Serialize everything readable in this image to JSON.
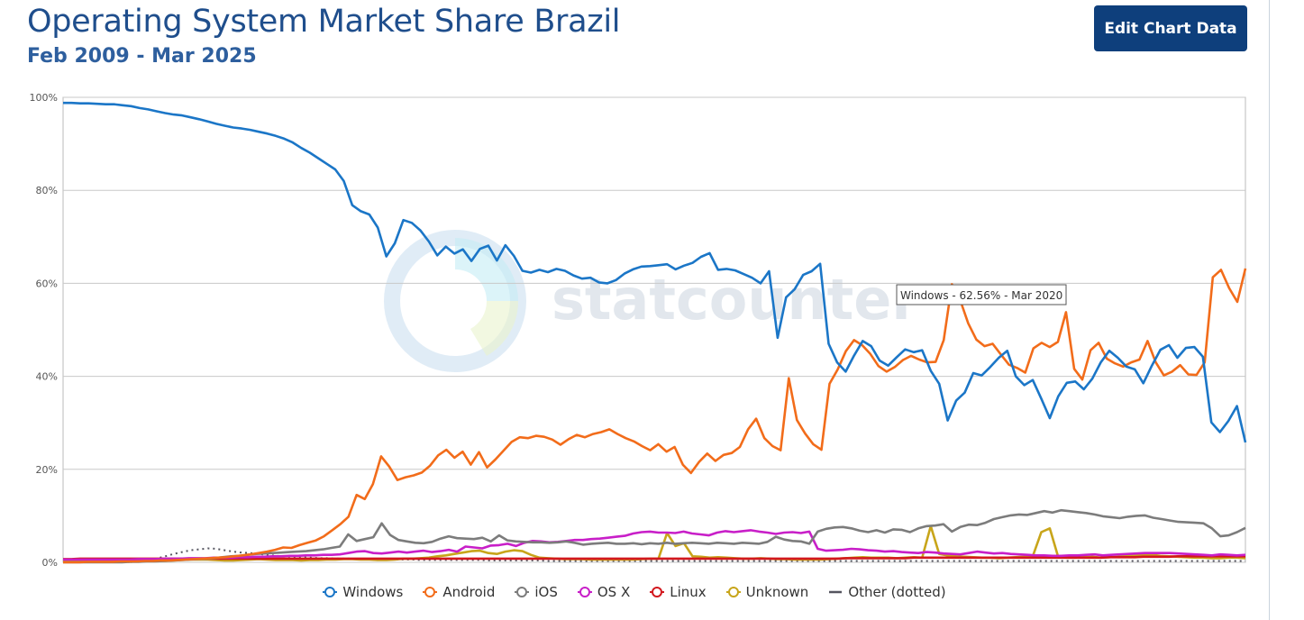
{
  "header": {
    "title": "Operating System Market Share Brazil",
    "subtitle": "Feb 2009 - Mar 2025",
    "edit_button_label": "Edit Chart Data"
  },
  "tooltip": {
    "text": "Windows - 62.56% - Mar 2020"
  },
  "watermark": {
    "text": "statcounter"
  },
  "chart_data": {
    "type": "line",
    "x_start": "Feb 2009",
    "x_end": "Mar 2025",
    "ylim": [
      0,
      100
    ],
    "y_ticks": [
      "0%",
      "20%",
      "40%",
      "60%",
      "80%",
      "100%"
    ],
    "grid": true,
    "legend_position": "bottom",
    "series": [
      {
        "name": "Windows",
        "color": "#1b76c7",
        "values": [
          98.8,
          98.8,
          98.7,
          98.7,
          98.6,
          98.5,
          98.5,
          98.3,
          98.1,
          97.7,
          97.4,
          97.0,
          96.6,
          96.3,
          96.1,
          95.7,
          95.3,
          94.8,
          94.3,
          93.9,
          93.5,
          93.3,
          93.0,
          92.6,
          92.2,
          91.7,
          91.1,
          90.3,
          89.1,
          88.1,
          86.9,
          85.7,
          84.5,
          82.0,
          76.8,
          75.5,
          74.8,
          72.0,
          65.8,
          68.6,
          73.6,
          73.0,
          71.4,
          69.0,
          66.0,
          67.9,
          66.4,
          67.3,
          64.8,
          67.4,
          68.1,
          64.9,
          68.2,
          65.9,
          62.7,
          62.3,
          62.9,
          62.4,
          63.1,
          62.7,
          61.7,
          61.0,
          61.2,
          60.2,
          60.0,
          60.7,
          62.1,
          63.0,
          63.6,
          63.7,
          63.9,
          64.1,
          63.0,
          63.8,
          64.4,
          65.7,
          66.5,
          62.9,
          63.1,
          62.8,
          62.0,
          61.2,
          60.0,
          62.6,
          48.3,
          57.0,
          58.7,
          61.8,
          62.6,
          64.2,
          47.0,
          43.0,
          41.0,
          44.5,
          47.6,
          46.5,
          43.4,
          42.3,
          44.1,
          45.8,
          45.2,
          45.6,
          41.2,
          38.4,
          30.5,
          34.8,
          36.5,
          40.7,
          40.2,
          42.0,
          44.0,
          45.5,
          40.0,
          38.1,
          39.2,
          35.2,
          31.0,
          35.7,
          38.6,
          38.9,
          37.2,
          39.5,
          43.0,
          45.5,
          44.0,
          42.1,
          41.5,
          38.5,
          42.3,
          45.7,
          46.7,
          44.0,
          46.1,
          46.3,
          44.2,
          30.1,
          28.0,
          30.4,
          33.6,
          25.8
        ]
      },
      {
        "name": "Android",
        "color": "#f26c1a",
        "values": [
          0.0,
          0.0,
          0.0,
          0.1,
          0.1,
          0.1,
          0.1,
          0.2,
          0.2,
          0.2,
          0.3,
          0.3,
          0.4,
          0.4,
          0.5,
          0.6,
          0.7,
          0.8,
          0.9,
          1.0,
          1.1,
          1.3,
          1.5,
          1.7,
          2.0,
          2.3,
          2.7,
          3.2,
          3.1,
          3.7,
          4.2,
          4.7,
          5.6,
          6.9,
          8.2,
          9.8,
          14.5,
          13.6,
          16.8,
          22.8,
          20.6,
          17.7,
          18.3,
          18.7,
          19.3,
          20.8,
          23.0,
          24.2,
          22.5,
          23.8,
          21.0,
          23.7,
          20.4,
          22.1,
          24.0,
          25.9,
          26.9,
          26.7,
          27.2,
          27.0,
          26.4,
          25.3,
          26.5,
          27.4,
          26.9,
          27.6,
          28.0,
          28.6,
          27.6,
          26.7,
          26.0,
          25.0,
          24.1,
          25.4,
          23.8,
          24.8,
          21.0,
          19.2,
          21.6,
          23.4,
          21.8,
          23.1,
          23.5,
          24.8,
          28.6,
          30.9,
          26.7,
          25.0,
          24.1,
          39.6,
          30.6,
          27.7,
          25.4,
          24.2,
          38.4,
          41.5,
          45.4,
          47.8,
          46.7,
          44.8,
          42.2,
          41.0,
          42.0,
          43.5,
          44.4,
          43.6,
          43.0,
          43.1,
          47.8,
          59.8,
          56.5,
          51.4,
          47.9,
          46.5,
          47.0,
          44.7,
          42.5,
          41.8,
          40.8,
          46.0,
          47.2,
          46.3,
          47.4,
          53.8,
          41.6,
          39.3,
          45.6,
          47.2,
          43.8,
          42.8,
          42.1,
          43.0,
          43.6,
          47.6,
          43.0,
          40.2,
          41.0,
          42.4,
          40.4,
          40.3,
          43.0,
          61.3,
          62.9,
          59.0,
          56.0,
          63.2
        ]
      },
      {
        "name": "iOS",
        "color": "#7c7c7c",
        "values": [
          0.0,
          0.0,
          0.0,
          0.0,
          0.0,
          0.0,
          0.0,
          0.0,
          0.1,
          0.1,
          0.2,
          0.2,
          0.3,
          0.4,
          0.5,
          0.6,
          0.7,
          0.8,
          0.9,
          1.1,
          1.3,
          1.4,
          1.6,
          1.8,
          1.9,
          2.0,
          2.1,
          2.2,
          2.3,
          2.4,
          2.6,
          2.8,
          3.1,
          3.4,
          6.0,
          4.6,
          5.0,
          5.4,
          8.4,
          5.9,
          4.8,
          4.5,
          4.2,
          4.1,
          4.4,
          5.1,
          5.6,
          5.2,
          5.1,
          5.0,
          5.3,
          4.5,
          5.8,
          4.7,
          4.5,
          4.4,
          4.3,
          4.3,
          4.2,
          4.3,
          4.5,
          4.2,
          3.8,
          4.0,
          4.1,
          4.2,
          4.0,
          4.0,
          4.1,
          3.9,
          4.1,
          4.0,
          4.2,
          4.0,
          4.1,
          4.2,
          4.1,
          4.0,
          4.2,
          4.1,
          4.0,
          4.2,
          4.1,
          4.0,
          4.4,
          5.5,
          4.9,
          4.6,
          4.5,
          4.0,
          6.6,
          7.2,
          7.5,
          7.6,
          7.3,
          6.8,
          6.5,
          6.9,
          6.4,
          7.1,
          7.0,
          6.5,
          7.3,
          7.8,
          7.9,
          8.2,
          6.6,
          7.6,
          8.1,
          8.0,
          8.5,
          9.3,
          9.7,
          10.1,
          10.3,
          10.2,
          10.6,
          11.0,
          10.7,
          11.2,
          11.0,
          10.8,
          10.6,
          10.3,
          9.9,
          9.7,
          9.5,
          9.8,
          10.0,
          10.1,
          9.6,
          9.3,
          9.0,
          8.7,
          8.6,
          8.5,
          8.4,
          7.3,
          5.6,
          5.8,
          6.5,
          7.4
        ]
      },
      {
        "name": "OS X",
        "color": "#c81fc8",
        "values": [
          0.6,
          0.6,
          0.6,
          0.6,
          0.6,
          0.6,
          0.6,
          0.6,
          0.6,
          0.7,
          0.7,
          0.7,
          0.8,
          0.8,
          0.8,
          0.9,
          0.9,
          0.9,
          1.0,
          1.0,
          1.0,
          1.1,
          1.1,
          1.2,
          1.2,
          1.3,
          1.3,
          1.4,
          1.4,
          1.5,
          1.5,
          1.6,
          1.6,
          1.7,
          2.0,
          2.3,
          2.4,
          2.0,
          1.9,
          2.1,
          2.3,
          2.1,
          2.3,
          2.5,
          2.2,
          2.4,
          2.7,
          2.3,
          3.4,
          3.2,
          3.0,
          3.6,
          3.7,
          4.0,
          3.5,
          4.2,
          4.6,
          4.5,
          4.3,
          4.4,
          4.6,
          4.8,
          4.8,
          5.0,
          5.1,
          5.3,
          5.5,
          5.7,
          6.2,
          6.5,
          6.6,
          6.4,
          6.4,
          6.3,
          6.6,
          6.2,
          6.0,
          5.8,
          6.4,
          6.7,
          6.5,
          6.7,
          6.9,
          6.6,
          6.4,
          6.1,
          6.4,
          6.5,
          6.3,
          6.6,
          2.9,
          2.5,
          2.6,
          2.7,
          2.9,
          2.8,
          2.6,
          2.5,
          2.3,
          2.4,
          2.2,
          2.1,
          2.0,
          2.2,
          2.1,
          1.9,
          1.8,
          1.7,
          2.0,
          2.3,
          2.1,
          1.9,
          2.0,
          1.8,
          1.7,
          1.6,
          1.5,
          1.5,
          1.4,
          1.4,
          1.5,
          1.5,
          1.6,
          1.7,
          1.5,
          1.6,
          1.7,
          1.8,
          1.9,
          2.0,
          2.0,
          2.0,
          2.0,
          1.9,
          1.8,
          1.7,
          1.6,
          1.5,
          1.7,
          1.6,
          1.5,
          1.6
        ]
      },
      {
        "name": "Linux",
        "color": "#d2181e",
        "values": [
          0.7,
          0.7,
          0.8,
          0.8,
          0.8,
          0.8,
          0.8,
          0.8,
          0.8,
          0.8,
          0.8,
          0.8,
          0.8,
          0.8,
          0.8,
          0.8,
          0.8,
          0.8,
          0.8,
          0.8,
          0.8,
          0.8,
          0.8,
          0.8,
          0.8,
          0.8,
          0.8,
          0.8,
          0.8,
          0.8,
          0.8,
          0.8,
          0.8,
          0.8,
          0.8,
          0.8,
          0.8,
          0.8,
          0.8,
          0.8,
          0.8,
          0.8,
          0.8,
          0.8,
          0.8,
          0.8,
          0.8,
          0.8,
          0.8,
          0.8,
          0.8,
          0.8,
          0.8,
          0.8,
          0.8,
          0.8,
          0.8,
          0.8,
          0.8,
          0.8,
          0.8,
          0.8,
          0.8,
          0.8,
          0.8,
          0.8,
          0.8,
          0.8,
          0.8,
          0.8,
          0.8,
          0.8,
          0.8,
          0.8,
          0.8,
          0.8,
          0.8,
          0.8,
          0.8,
          0.8,
          0.8,
          0.8,
          0.8,
          0.8,
          0.8,
          0.8,
          0.8,
          0.8,
          0.8,
          0.8,
          0.8,
          0.8,
          0.9,
          0.9,
          0.9,
          0.9,
          0.9,
          0.9,
          0.9,
          0.9,
          1.0,
          1.0,
          1.0,
          1.0,
          1.0,
          1.0,
          1.0,
          1.0,
          1.0,
          1.0,
          1.0,
          1.0,
          1.0,
          1.0,
          1.0,
          1.0,
          1.0,
          1.0,
          1.0,
          1.0,
          1.0,
          1.0,
          1.0,
          1.1,
          1.1,
          1.1,
          1.1,
          1.2,
          1.2,
          1.2,
          1.2,
          1.3,
          1.3,
          1.3,
          1.3,
          1.3,
          1.3,
          1.3,
          1.3,
          1.3
        ]
      },
      {
        "name": "Unknown",
        "color": "#c8a51a",
        "values": [
          0.2,
          0.2,
          0.2,
          0.2,
          0.2,
          0.4,
          0.1,
          0.4,
          0.1,
          0.4,
          0.3,
          0.3,
          0.3,
          0.4,
          0.5,
          0.6,
          0.6,
          0.6,
          0.5,
          0.4,
          0.4,
          0.5,
          0.6,
          0.7,
          0.6,
          0.5,
          0.5,
          0.5,
          0.4,
          0.5,
          0.5,
          0.6,
          0.6,
          0.7,
          0.7,
          0.6,
          0.6,
          0.5,
          0.5,
          0.6,
          0.8,
          0.8,
          0.9,
          1.0,
          1.3,
          1.5,
          1.8,
          2.1,
          2.4,
          2.5,
          2.0,
          1.8,
          2.3,
          2.6,
          2.4,
          1.6,
          1.0,
          0.9,
          0.8,
          0.7,
          0.7,
          0.7,
          0.6,
          0.6,
          0.6,
          0.6,
          0.6,
          0.6,
          0.7,
          0.8,
          0.8,
          6.3,
          3.5,
          4.1,
          1.3,
          1.2,
          1.0,
          1.1,
          1.0,
          0.9,
          0.8,
          0.8,
          0.9,
          0.8,
          0.7,
          0.7,
          0.6,
          0.6,
          0.6,
          0.6,
          0.7,
          0.8,
          0.9,
          1.0,
          1.1,
          1.0,
          1.0,
          1.0,
          0.9,
          1.0,
          1.1,
          1.0,
          7.8,
          1.8,
          1.5,
          1.3,
          1.2,
          1.1,
          1.0,
          1.0,
          0.9,
          1.0,
          1.1,
          1.2,
          1.3,
          6.5,
          7.3,
          1.1,
          1.0,
          1.0,
          1.1,
          1.2,
          1.0,
          1.1,
          1.2,
          1.4,
          1.5,
          1.5,
          1.6,
          1.4,
          1.3,
          1.2,
          1.1,
          1.0,
          1.0,
          0.9,
          0.9,
          1.0,
          1.0,
          0.9
        ]
      },
      {
        "name": "Other (dotted)",
        "color": "#55555f",
        "values": [
          0.0,
          0.0,
          0.0,
          0.0,
          0.0,
          0.0,
          0.0,
          0.0,
          0.1,
          0.2,
          0.3,
          0.8,
          1.3,
          1.8,
          2.2,
          2.6,
          2.8,
          3.0,
          2.9,
          2.6,
          2.3,
          2.1,
          2.0,
          1.8,
          1.6,
          1.4,
          1.3,
          1.2,
          1.1,
          1.0,
          0.9,
          0.9,
          0.8,
          0.8,
          0.8,
          0.7,
          0.7,
          0.7,
          0.6,
          0.6,
          0.6,
          0.6,
          0.5,
          0.5,
          0.5,
          0.5,
          0.5,
          0.5,
          0.5,
          0.5,
          0.4,
          0.4,
          0.4,
          0.4,
          0.4,
          0.4,
          0.4,
          0.3,
          0.3,
          0.3,
          0.3,
          0.3,
          0.3,
          0.3,
          0.3,
          0.3,
          0.3,
          0.3,
          0.3,
          0.3,
          0.3,
          0.3,
          0.3,
          0.3,
          0.3,
          0.3,
          0.3,
          0.3,
          0.3,
          0.3,
          0.3,
          0.3,
          0.3,
          0.3,
          0.3,
          0.3,
          0.3,
          0.3,
          0.3,
          0.3,
          0.3,
          0.3,
          0.3,
          0.3,
          0.3,
          0.3,
          0.3,
          0.3,
          0.3,
          0.3,
          0.3,
          0.3,
          0.3,
          0.3,
          0.3,
          0.3,
          0.3,
          0.3,
          0.3,
          0.3,
          0.3,
          0.3,
          0.3,
          0.3,
          0.3,
          0.3,
          0.3,
          0.3,
          0.3,
          0.3,
          0.3,
          0.3,
          0.3,
          0.3,
          0.3,
          0.3,
          0.3,
          0.3,
          0.3,
          0.3,
          0.3,
          0.3,
          0.3,
          0.3,
          0.3,
          0.3,
          0.3,
          0.3,
          0.3,
          0.3
        ]
      }
    ]
  }
}
